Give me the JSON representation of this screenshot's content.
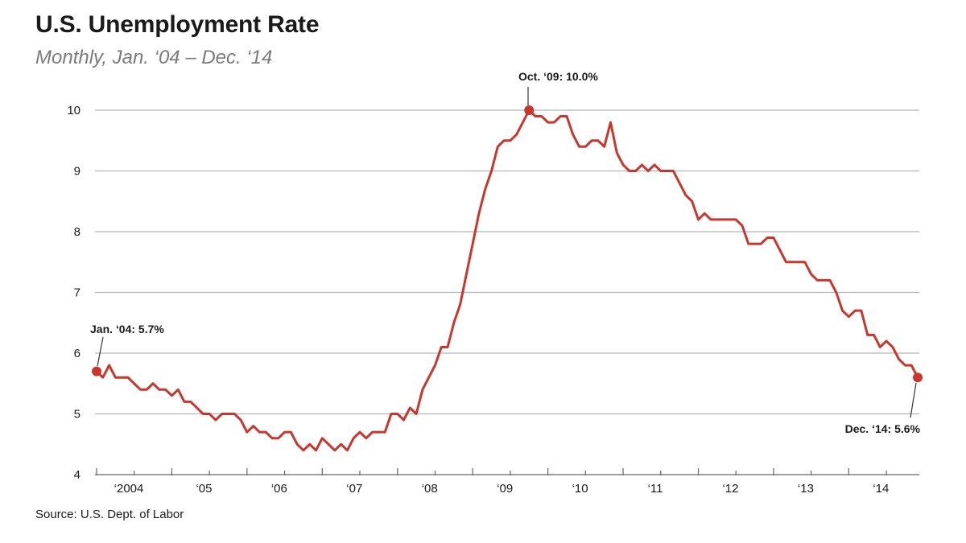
{
  "header": {
    "title": "U.S. Unemployment Rate",
    "subtitle": "Monthly, Jan. ‘04 – Dec. ‘14"
  },
  "footer": {
    "source": "Source: U.S. Dept. of Labor"
  },
  "colors": {
    "series": "#c8372d",
    "grid": "#b5b5b5",
    "axis": "#666666"
  },
  "chart_data": {
    "type": "line",
    "title": "U.S. Unemployment Rate",
    "subtitle": "Monthly, Jan. ‘04 – Dec. ‘14",
    "xlabel": "",
    "ylabel": "",
    "ylim": [
      4,
      10
    ],
    "yticks": [
      4,
      5,
      6,
      7,
      8,
      9,
      10
    ],
    "grid": true,
    "legend": "none",
    "x_start": "2004-01",
    "x_end": "2014-12",
    "x_ticks": [
      {
        "date": "2004-01",
        "label": "‘2004"
      },
      {
        "date": "2005-01",
        "label": "‘05"
      },
      {
        "date": "2006-01",
        "label": "‘06"
      },
      {
        "date": "2007-01",
        "label": "‘07"
      },
      {
        "date": "2008-01",
        "label": "‘08"
      },
      {
        "date": "2009-01",
        "label": "‘09"
      },
      {
        "date": "2010-01",
        "label": "‘10"
      },
      {
        "date": "2011-01",
        "label": "‘11"
      },
      {
        "date": "2012-01",
        "label": "‘12"
      },
      {
        "date": "2013-01",
        "label": "‘13"
      },
      {
        "date": "2014-01",
        "label": "‘14"
      }
    ],
    "series": [
      {
        "color": "#c8372d",
        "values": [
          5.7,
          5.6,
          5.8,
          5.6,
          5.6,
          5.6,
          5.5,
          5.4,
          5.4,
          5.5,
          5.4,
          5.4,
          5.3,
          5.4,
          5.2,
          5.2,
          5.1,
          5.0,
          5.0,
          4.9,
          5.0,
          5.0,
          5.0,
          4.9,
          4.7,
          4.8,
          4.7,
          4.7,
          4.6,
          4.6,
          4.7,
          4.7,
          4.5,
          4.4,
          4.5,
          4.4,
          4.6,
          4.5,
          4.4,
          4.5,
          4.4,
          4.6,
          4.7,
          4.6,
          4.7,
          4.7,
          4.7,
          5.0,
          5.0,
          4.9,
          5.1,
          5.0,
          5.4,
          5.6,
          5.8,
          6.1,
          6.1,
          6.5,
          6.8,
          7.3,
          7.8,
          8.3,
          8.7,
          9.0,
          9.4,
          9.5,
          9.5,
          9.6,
          9.8,
          10.0,
          9.9,
          9.9,
          9.8,
          9.8,
          9.9,
          9.9,
          9.6,
          9.4,
          9.4,
          9.5,
          9.5,
          9.4,
          9.8,
          9.3,
          9.1,
          9.0,
          9.0,
          9.1,
          9.0,
          9.1,
          9.0,
          9.0,
          9.0,
          8.8,
          8.6,
          8.5,
          8.2,
          8.3,
          8.2,
          8.2,
          8.2,
          8.2,
          8.2,
          8.1,
          7.8,
          7.8,
          7.8,
          7.9,
          7.9,
          7.7,
          7.5,
          7.5,
          7.5,
          7.5,
          7.3,
          7.2,
          7.2,
          7.2,
          7.0,
          6.7,
          6.6,
          6.7,
          6.7,
          6.3,
          6.3,
          6.1,
          6.2,
          6.1,
          5.9,
          5.8,
          5.8,
          5.6
        ]
      }
    ],
    "annotations": [
      {
        "date": "2004-01",
        "value": 5.7,
        "label": "Jan. ‘04: 5.7%"
      },
      {
        "date": "2009-10",
        "value": 10.0,
        "label": "Oct. ‘09: 10.0%"
      },
      {
        "date": "2014-12",
        "value": 5.6,
        "label": "Dec. ‘14: 5.6%"
      }
    ]
  }
}
